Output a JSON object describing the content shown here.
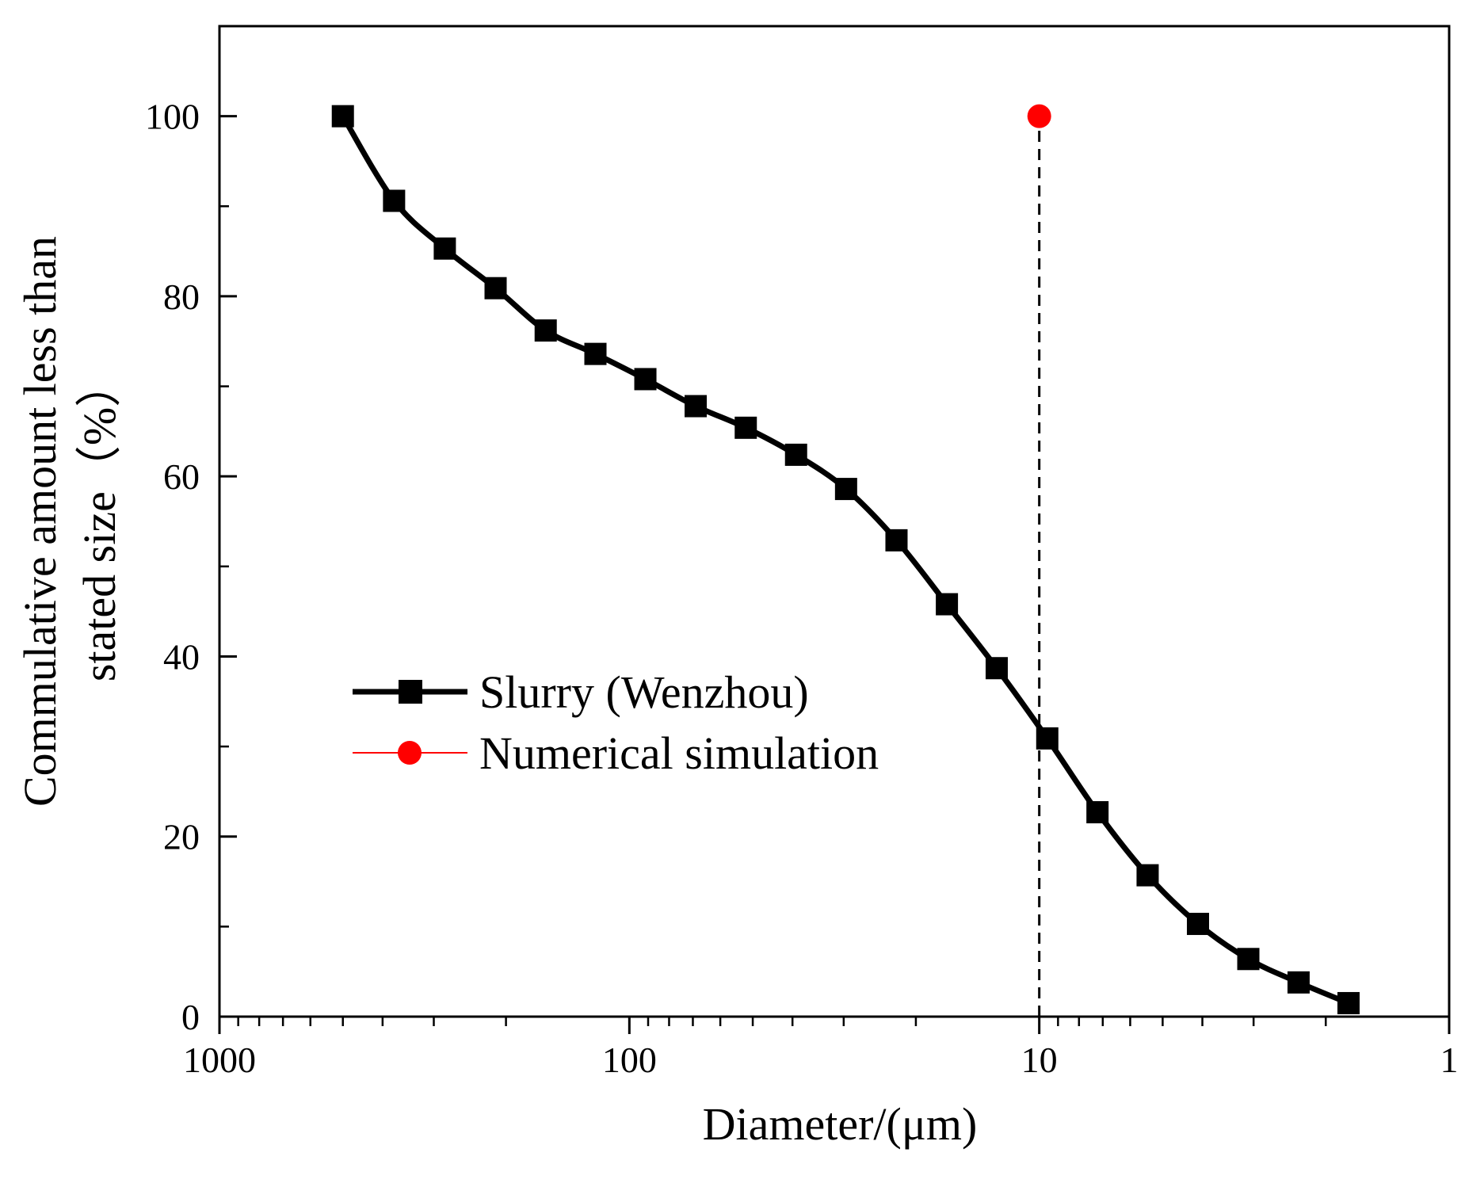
{
  "chart_data": {
    "type": "line",
    "x_scale": "log",
    "x_reversed": true,
    "xlim": [
      1000,
      1
    ],
    "ylim": [
      0,
      110
    ],
    "xlabel": "Diameter/(μm)",
    "ylabel_line1": "Commulative amount less than",
    "ylabel_line2": "stated size（%）",
    "x_major_ticks": [
      1000,
      100,
      10,
      1
    ],
    "x_tick_labels": [
      "1000",
      "100",
      "10",
      "1"
    ],
    "y_major_ticks": [
      0,
      20,
      40,
      60,
      80,
      100
    ],
    "y_tick_labels": [
      "0",
      "20",
      "40",
      "60",
      "80",
      "100"
    ],
    "y_minor_ticks": [
      10,
      30,
      50,
      70,
      90
    ],
    "grid": false,
    "legend_position": "center-left",
    "series": [
      {
        "name": "Slurry (Wenzhou)",
        "color": "#000000",
        "marker": "square",
        "line": "solid",
        "x": [
          500,
          375,
          282,
          212,
          160,
          121,
          91.4,
          68.9,
          52,
          39.2,
          29.6,
          22.3,
          16.8,
          12.7,
          9.56,
          7.21,
          5.44,
          4.1,
          3.09,
          2.33,
          1.76
        ],
        "y": [
          100,
          90.6,
          85.3,
          80.9,
          76.2,
          73.6,
          70.8,
          67.8,
          65.4,
          62.4,
          58.6,
          52.9,
          45.8,
          38.7,
          30.9,
          22.7,
          15.7,
          10.3,
          6.4,
          3.8,
          1.5
        ]
      },
      {
        "name": "Numerical simulation",
        "color": "#ff0000",
        "marker": "circle",
        "line": "solid",
        "x": [
          10
        ],
        "y": [
          100
        ]
      }
    ],
    "reference_line": {
      "style": "dashed",
      "color": "#000000",
      "x": 10,
      "y_range": [
        0,
        100
      ]
    }
  }
}
